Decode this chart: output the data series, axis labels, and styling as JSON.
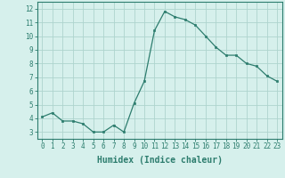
{
  "x": [
    0,
    1,
    2,
    3,
    4,
    5,
    6,
    7,
    8,
    9,
    10,
    11,
    12,
    13,
    14,
    15,
    16,
    17,
    18,
    19,
    20,
    21,
    22,
    23
  ],
  "y": [
    4.1,
    4.4,
    3.8,
    3.8,
    3.6,
    3.0,
    3.0,
    3.5,
    3.0,
    5.1,
    6.7,
    10.4,
    11.8,
    11.4,
    11.2,
    10.8,
    10.0,
    9.2,
    8.6,
    8.6,
    8.0,
    7.8,
    7.1,
    6.7
  ],
  "xlabel": "Humidex (Indice chaleur)",
  "line_color": "#2d7d6e",
  "marker": "s",
  "marker_size": 2.0,
  "line_width": 0.9,
  "bg_color": "#d6f0ec",
  "grid_color": "#aed4ce",
  "xlim": [
    -0.5,
    23.5
  ],
  "ylim": [
    2.5,
    12.5
  ],
  "yticks": [
    3,
    4,
    5,
    6,
    7,
    8,
    9,
    10,
    11,
    12
  ],
  "xticks": [
    0,
    1,
    2,
    3,
    4,
    5,
    6,
    7,
    8,
    9,
    10,
    11,
    12,
    13,
    14,
    15,
    16,
    17,
    18,
    19,
    20,
    21,
    22,
    23
  ],
  "tick_fontsize": 5.5,
  "xlabel_fontsize": 7.0,
  "axis_color": "#2d7d6e"
}
